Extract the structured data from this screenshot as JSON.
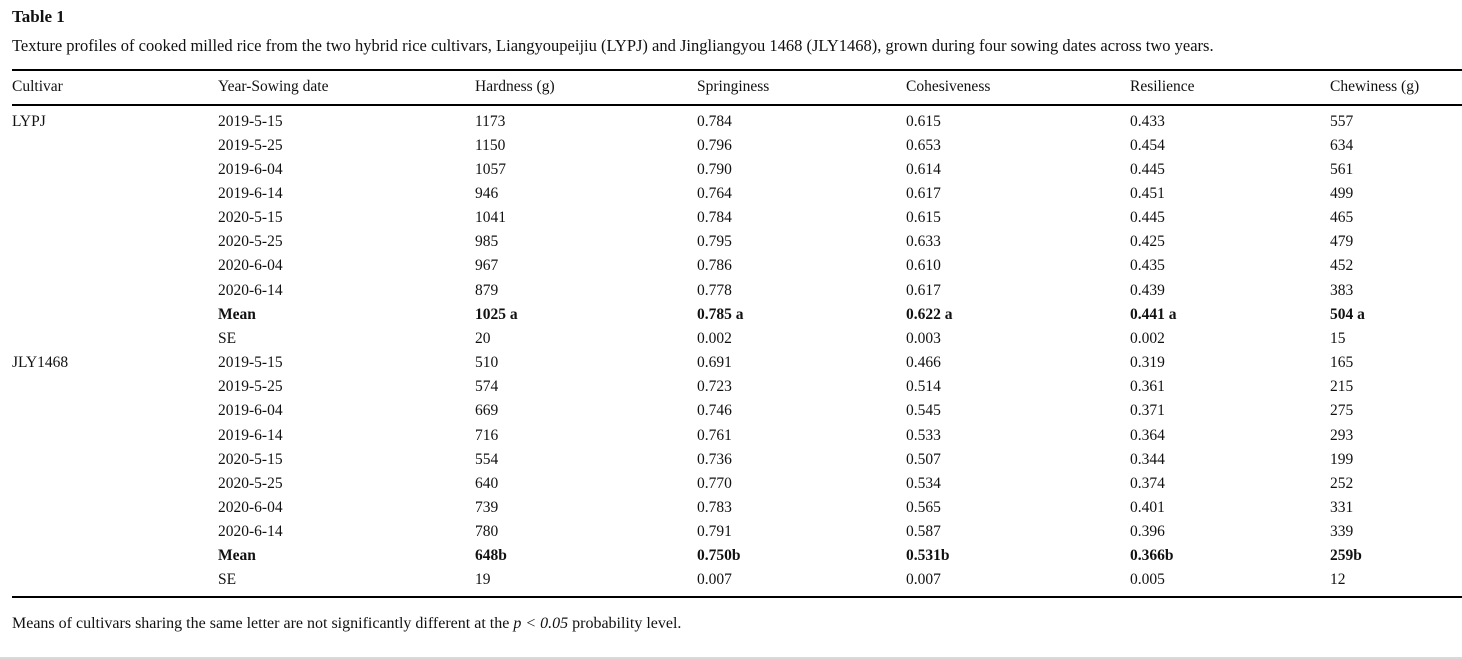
{
  "colors": {
    "background": "#ffffff",
    "text": "#111111",
    "rule": "#000000"
  },
  "table": {
    "label": "Table 1",
    "caption": "Texture profiles of cooked milled rice from the two hybrid rice cultivars, Liangyoupeijiu (LYPJ) and Jingliangyou 1468 (JLY1468), grown during four sowing dates across two years.",
    "columns": [
      "Cultivar",
      "Year-Sowing date",
      "Hardness (g)",
      "Springiness",
      "Cohesiveness",
      "Resilience",
      "Chewiness (g)"
    ],
    "row_keys": [
      "cultivar",
      "date",
      "hardness",
      "springiness",
      "cohesiveness",
      "resilience",
      "chewiness"
    ],
    "rows": [
      {
        "cultivar": "LYPJ",
        "date": "2019-5-15",
        "hardness": "1173",
        "springiness": "0.784",
        "cohesiveness": "0.615",
        "resilience": "0.433",
        "chewiness": "557",
        "bold": false
      },
      {
        "cultivar": "",
        "date": "2019-5-25",
        "hardness": "1150",
        "springiness": "0.796",
        "cohesiveness": "0.653",
        "resilience": "0.454",
        "chewiness": "634",
        "bold": false
      },
      {
        "cultivar": "",
        "date": "2019-6-04",
        "hardness": "1057",
        "springiness": "0.790",
        "cohesiveness": "0.614",
        "resilience": "0.445",
        "chewiness": "561",
        "bold": false
      },
      {
        "cultivar": "",
        "date": "2019-6-14",
        "hardness": "946",
        "springiness": "0.764",
        "cohesiveness": "0.617",
        "resilience": "0.451",
        "chewiness": "499",
        "bold": false
      },
      {
        "cultivar": "",
        "date": "2020-5-15",
        "hardness": "1041",
        "springiness": "0.784",
        "cohesiveness": "0.615",
        "resilience": "0.445",
        "chewiness": "465",
        "bold": false
      },
      {
        "cultivar": "",
        "date": "2020-5-25",
        "hardness": "985",
        "springiness": "0.795",
        "cohesiveness": "0.633",
        "resilience": "0.425",
        "chewiness": "479",
        "bold": false
      },
      {
        "cultivar": "",
        "date": "2020-6-04",
        "hardness": "967",
        "springiness": "0.786",
        "cohesiveness": "0.610",
        "resilience": "0.435",
        "chewiness": "452",
        "bold": false
      },
      {
        "cultivar": "",
        "date": "2020-6-14",
        "hardness": "879",
        "springiness": "0.778",
        "cohesiveness": "0.617",
        "resilience": "0.439",
        "chewiness": "383",
        "bold": false
      },
      {
        "cultivar": "",
        "date": "Mean",
        "hardness": "1025 a",
        "springiness": "0.785 a",
        "cohesiveness": "0.622 a",
        "resilience": "0.441 a",
        "chewiness": "504 a",
        "bold": true
      },
      {
        "cultivar": "",
        "date": "SE",
        "hardness": "20",
        "springiness": "0.002",
        "cohesiveness": "0.003",
        "resilience": "0.002",
        "chewiness": "15",
        "bold": false
      },
      {
        "cultivar": "JLY1468",
        "date": "2019-5-15",
        "hardness": "510",
        "springiness": "0.691",
        "cohesiveness": "0.466",
        "resilience": "0.319",
        "chewiness": "165",
        "bold": false
      },
      {
        "cultivar": "",
        "date": "2019-5-25",
        "hardness": "574",
        "springiness": "0.723",
        "cohesiveness": "0.514",
        "resilience": "0.361",
        "chewiness": "215",
        "bold": false
      },
      {
        "cultivar": "",
        "date": "2019-6-04",
        "hardness": "669",
        "springiness": "0.746",
        "cohesiveness": "0.545",
        "resilience": "0.371",
        "chewiness": "275",
        "bold": false
      },
      {
        "cultivar": "",
        "date": "2019-6-14",
        "hardness": "716",
        "springiness": "0.761",
        "cohesiveness": "0.533",
        "resilience": "0.364",
        "chewiness": "293",
        "bold": false
      },
      {
        "cultivar": "",
        "date": "2020-5-15",
        "hardness": "554",
        "springiness": "0.736",
        "cohesiveness": "0.507",
        "resilience": "0.344",
        "chewiness": "199",
        "bold": false
      },
      {
        "cultivar": "",
        "date": "2020-5-25",
        "hardness": "640",
        "springiness": "0.770",
        "cohesiveness": "0.534",
        "resilience": "0.374",
        "chewiness": "252",
        "bold": false
      },
      {
        "cultivar": "",
        "date": "2020-6-04",
        "hardness": "739",
        "springiness": "0.783",
        "cohesiveness": "0.565",
        "resilience": "0.401",
        "chewiness": "331",
        "bold": false
      },
      {
        "cultivar": "",
        "date": "2020-6-14",
        "hardness": "780",
        "springiness": "0.791",
        "cohesiveness": "0.587",
        "resilience": "0.396",
        "chewiness": "339",
        "bold": false
      },
      {
        "cultivar": "",
        "date": "Mean",
        "hardness": "648b",
        "springiness": "0.750b",
        "cohesiveness": "0.531b",
        "resilience": "0.366b",
        "chewiness": "259b",
        "bold": true
      },
      {
        "cultivar": "",
        "date": "SE",
        "hardness": "19",
        "springiness": "0.007",
        "cohesiveness": "0.007",
        "resilience": "0.005",
        "chewiness": "12",
        "bold": false
      }
    ],
    "footnote": {
      "pre": "Means of cultivars sharing the same letter are not significantly different at the ",
      "italic": "p < 0.05",
      "post": " probability level."
    }
  }
}
